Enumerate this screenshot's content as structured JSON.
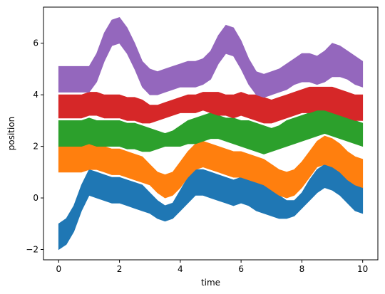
{
  "chart_data": {
    "type": "area",
    "xlabel": "time",
    "ylabel": "position",
    "xlim": [
      -0.5,
      10.5
    ],
    "ylim": [
      -2.4,
      7.4
    ],
    "xticks": [
      0,
      2,
      4,
      6,
      8,
      10
    ],
    "yticks": [
      -2,
      0,
      2,
      4,
      6
    ],
    "grid": false,
    "x": [
      0,
      0.25,
      0.5,
      0.75,
      1,
      1.25,
      1.5,
      1.75,
      2,
      2.25,
      2.5,
      2.75,
      3,
      3.25,
      3.5,
      3.75,
      4,
      4.25,
      4.5,
      4.75,
      5,
      5.25,
      5.5,
      5.75,
      6,
      6.25,
      6.5,
      6.75,
      7,
      7.25,
      7.5,
      7.75,
      8,
      8.25,
      8.5,
      8.75,
      9,
      9.25,
      9.5,
      9.75,
      10
    ],
    "series": [
      {
        "color": "#1f77b4",
        "upper": [
          -1.0,
          -0.8,
          -0.3,
          0.5,
          1.1,
          1.0,
          0.9,
          0.8,
          0.8,
          0.7,
          0.6,
          0.5,
          0.2,
          -0.1,
          -0.3,
          -0.2,
          0.3,
          0.8,
          1.1,
          1.1,
          1.0,
          0.9,
          0.8,
          0.7,
          0.8,
          0.7,
          0.6,
          0.5,
          0.4,
          0.1,
          -0.1,
          -0.1,
          0.2,
          0.7,
          1.1,
          1.3,
          1.3,
          1.1,
          0.8,
          0.5,
          0.4
        ],
        "lower": [
          -2.0,
          -1.8,
          -1.3,
          -0.5,
          0.1,
          0.0,
          -0.1,
          -0.2,
          -0.2,
          -0.3,
          -0.4,
          -0.5,
          -0.6,
          -0.8,
          -0.9,
          -0.8,
          -0.5,
          -0.2,
          0.1,
          0.1,
          0.0,
          -0.1,
          -0.2,
          -0.3,
          -0.2,
          -0.3,
          -0.5,
          -0.6,
          -0.7,
          -0.8,
          -0.8,
          -0.7,
          -0.4,
          -0.1,
          0.2,
          0.4,
          0.3,
          0.1,
          -0.2,
          -0.5,
          -0.6
        ]
      },
      {
        "color": "#ff7f0e",
        "upper": [
          2.0,
          2.0,
          2.0,
          2.0,
          2.1,
          2.1,
          2.0,
          1.9,
          1.9,
          1.8,
          1.7,
          1.6,
          1.3,
          1.0,
          0.9,
          1.0,
          1.4,
          1.8,
          2.1,
          2.2,
          2.1,
          2.0,
          1.9,
          1.8,
          1.8,
          1.7,
          1.6,
          1.5,
          1.3,
          1.1,
          1.0,
          1.1,
          1.4,
          1.8,
          2.2,
          2.4,
          2.3,
          2.1,
          1.8,
          1.6,
          1.5
        ],
        "lower": [
          1.0,
          1.0,
          1.0,
          1.0,
          1.1,
          1.1,
          1.0,
          0.9,
          0.9,
          0.8,
          0.7,
          0.6,
          0.5,
          0.2,
          0.0,
          0.1,
          0.4,
          0.8,
          1.1,
          1.2,
          1.1,
          1.0,
          0.9,
          0.8,
          0.8,
          0.7,
          0.6,
          0.5,
          0.3,
          0.1,
          0.0,
          0.1,
          0.4,
          0.8,
          1.2,
          1.3,
          1.2,
          1.0,
          0.7,
          0.5,
          0.4
        ]
      },
      {
        "color": "#2ca02c",
        "upper": [
          3.0,
          3.0,
          3.0,
          3.0,
          3.1,
          3.0,
          3.0,
          3.0,
          3.0,
          2.9,
          2.9,
          2.8,
          2.7,
          2.6,
          2.5,
          2.6,
          2.8,
          3.0,
          3.1,
          3.2,
          3.3,
          3.2,
          3.1,
          3.1,
          3.0,
          3.0,
          2.9,
          2.8,
          2.7,
          2.8,
          3.0,
          3.1,
          3.2,
          3.3,
          3.4,
          3.4,
          3.3,
          3.2,
          3.1,
          3.0,
          2.9
        ],
        "lower": [
          2.0,
          2.0,
          2.0,
          2.0,
          2.1,
          2.0,
          2.0,
          2.0,
          2.0,
          1.9,
          1.9,
          1.8,
          1.8,
          1.9,
          2.0,
          2.0,
          2.0,
          2.1,
          2.1,
          2.2,
          2.3,
          2.3,
          2.2,
          2.1,
          2.0,
          1.9,
          1.8,
          1.7,
          1.8,
          1.9,
          2.0,
          2.1,
          2.2,
          2.3,
          2.4,
          2.5,
          2.4,
          2.3,
          2.2,
          2.1,
          2.0
        ]
      },
      {
        "color": "#d62728",
        "upper": [
          4.0,
          4.0,
          4.0,
          4.0,
          4.1,
          4.1,
          4.0,
          4.0,
          4.0,
          3.9,
          3.9,
          3.8,
          3.6,
          3.6,
          3.7,
          3.8,
          3.9,
          4.0,
          4.0,
          4.1,
          4.1,
          4.1,
          4.0,
          4.0,
          4.1,
          4.0,
          4.0,
          3.9,
          3.8,
          3.9,
          4.0,
          4.1,
          4.2,
          4.3,
          4.3,
          4.3,
          4.3,
          4.2,
          4.1,
          4.0,
          4.0
        ],
        "lower": [
          3.1,
          3.1,
          3.1,
          3.1,
          3.2,
          3.2,
          3.1,
          3.1,
          3.1,
          3.0,
          3.0,
          2.9,
          2.9,
          3.0,
          3.1,
          3.2,
          3.3,
          3.3,
          3.3,
          3.4,
          3.3,
          3.2,
          3.2,
          3.1,
          3.2,
          3.1,
          3.0,
          2.9,
          2.9,
          3.0,
          3.1,
          3.2,
          3.3,
          3.3,
          3.4,
          3.4,
          3.3,
          3.2,
          3.1,
          3.0,
          3.0
        ]
      },
      {
        "color": "#9467bd",
        "upper": [
          5.1,
          5.1,
          5.1,
          5.1,
          5.1,
          5.6,
          6.4,
          6.9,
          7.0,
          6.6,
          6.0,
          5.3,
          5.0,
          4.9,
          5.0,
          5.1,
          5.2,
          5.3,
          5.3,
          5.4,
          5.7,
          6.3,
          6.7,
          6.6,
          6.1,
          5.4,
          4.9,
          4.8,
          4.9,
          5.0,
          5.2,
          5.4,
          5.6,
          5.6,
          5.5,
          5.7,
          6.0,
          5.9,
          5.7,
          5.5,
          5.3
        ],
        "lower": [
          4.1,
          4.1,
          4.1,
          4.1,
          4.1,
          4.5,
          5.3,
          5.9,
          6.0,
          5.6,
          5.0,
          4.3,
          4.0,
          4.0,
          4.1,
          4.2,
          4.3,
          4.3,
          4.3,
          4.4,
          4.6,
          5.2,
          5.6,
          5.5,
          5.0,
          4.4,
          4.0,
          3.9,
          4.0,
          4.1,
          4.2,
          4.4,
          4.5,
          4.5,
          4.4,
          4.5,
          4.7,
          4.7,
          4.6,
          4.4,
          4.3
        ]
      }
    ]
  }
}
